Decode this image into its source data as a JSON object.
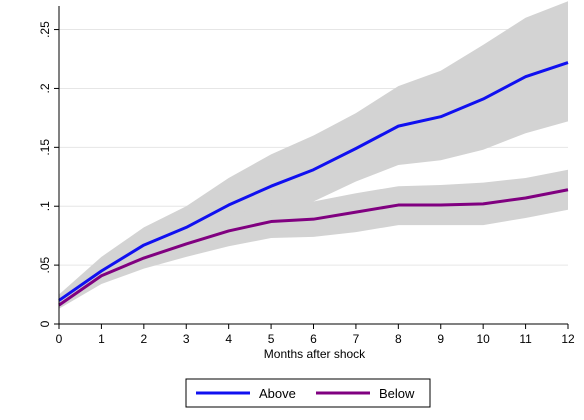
{
  "chart_data": {
    "type": "line",
    "title": "",
    "xlabel": "Months after shock",
    "ylabel": "",
    "x": [
      0,
      1,
      2,
      3,
      4,
      5,
      6,
      7,
      8,
      9,
      10,
      11,
      12
    ],
    "xlim": [
      0,
      12
    ],
    "ylim": [
      0,
      0.27
    ],
    "xticks": [
      0,
      1,
      2,
      3,
      4,
      5,
      6,
      7,
      8,
      9,
      10,
      11,
      12
    ],
    "xtick_labels": [
      "0",
      "1",
      "2",
      "3",
      "4",
      "5",
      "6",
      "7",
      "8",
      "9",
      "10",
      "11",
      "12"
    ],
    "yticks": [
      0,
      0.05,
      0.1,
      0.15,
      0.2,
      0.25
    ],
    "ytick_labels": [
      "0",
      ".05",
      ".1",
      ".15",
      ".2",
      ".25"
    ],
    "grid": true,
    "legend_position": "bottom",
    "series": [
      {
        "name": "Above",
        "color": "#1010f0",
        "values": [
          0.02,
          0.045,
          0.067,
          0.082,
          0.101,
          0.117,
          0.131,
          0.149,
          0.168,
          0.176,
          0.191,
          0.21,
          0.222
        ],
        "ci_lower": [
          0.016,
          0.036,
          0.053,
          0.064,
          0.078,
          0.091,
          0.104,
          0.121,
          0.135,
          0.139,
          0.148,
          0.162,
          0.172
        ],
        "ci_upper": [
          0.025,
          0.057,
          0.082,
          0.1,
          0.124,
          0.144,
          0.16,
          0.179,
          0.202,
          0.215,
          0.237,
          0.26,
          0.274
        ]
      },
      {
        "name": "Below",
        "color": "#800080",
        "values": [
          0.016,
          0.041,
          0.056,
          0.068,
          0.079,
          0.087,
          0.089,
          0.095,
          0.101,
          0.101,
          0.102,
          0.107,
          0.114
        ],
        "ci_lower": [
          0.013,
          0.034,
          0.047,
          0.057,
          0.066,
          0.073,
          0.074,
          0.078,
          0.084,
          0.084,
          0.084,
          0.09,
          0.097
        ],
        "ci_upper": [
          0.02,
          0.048,
          0.066,
          0.079,
          0.092,
          0.101,
          0.104,
          0.111,
          0.117,
          0.118,
          0.12,
          0.124,
          0.131
        ]
      }
    ],
    "ci_color": "#d3d3d3",
    "grid_color": "#e6e6e6"
  }
}
